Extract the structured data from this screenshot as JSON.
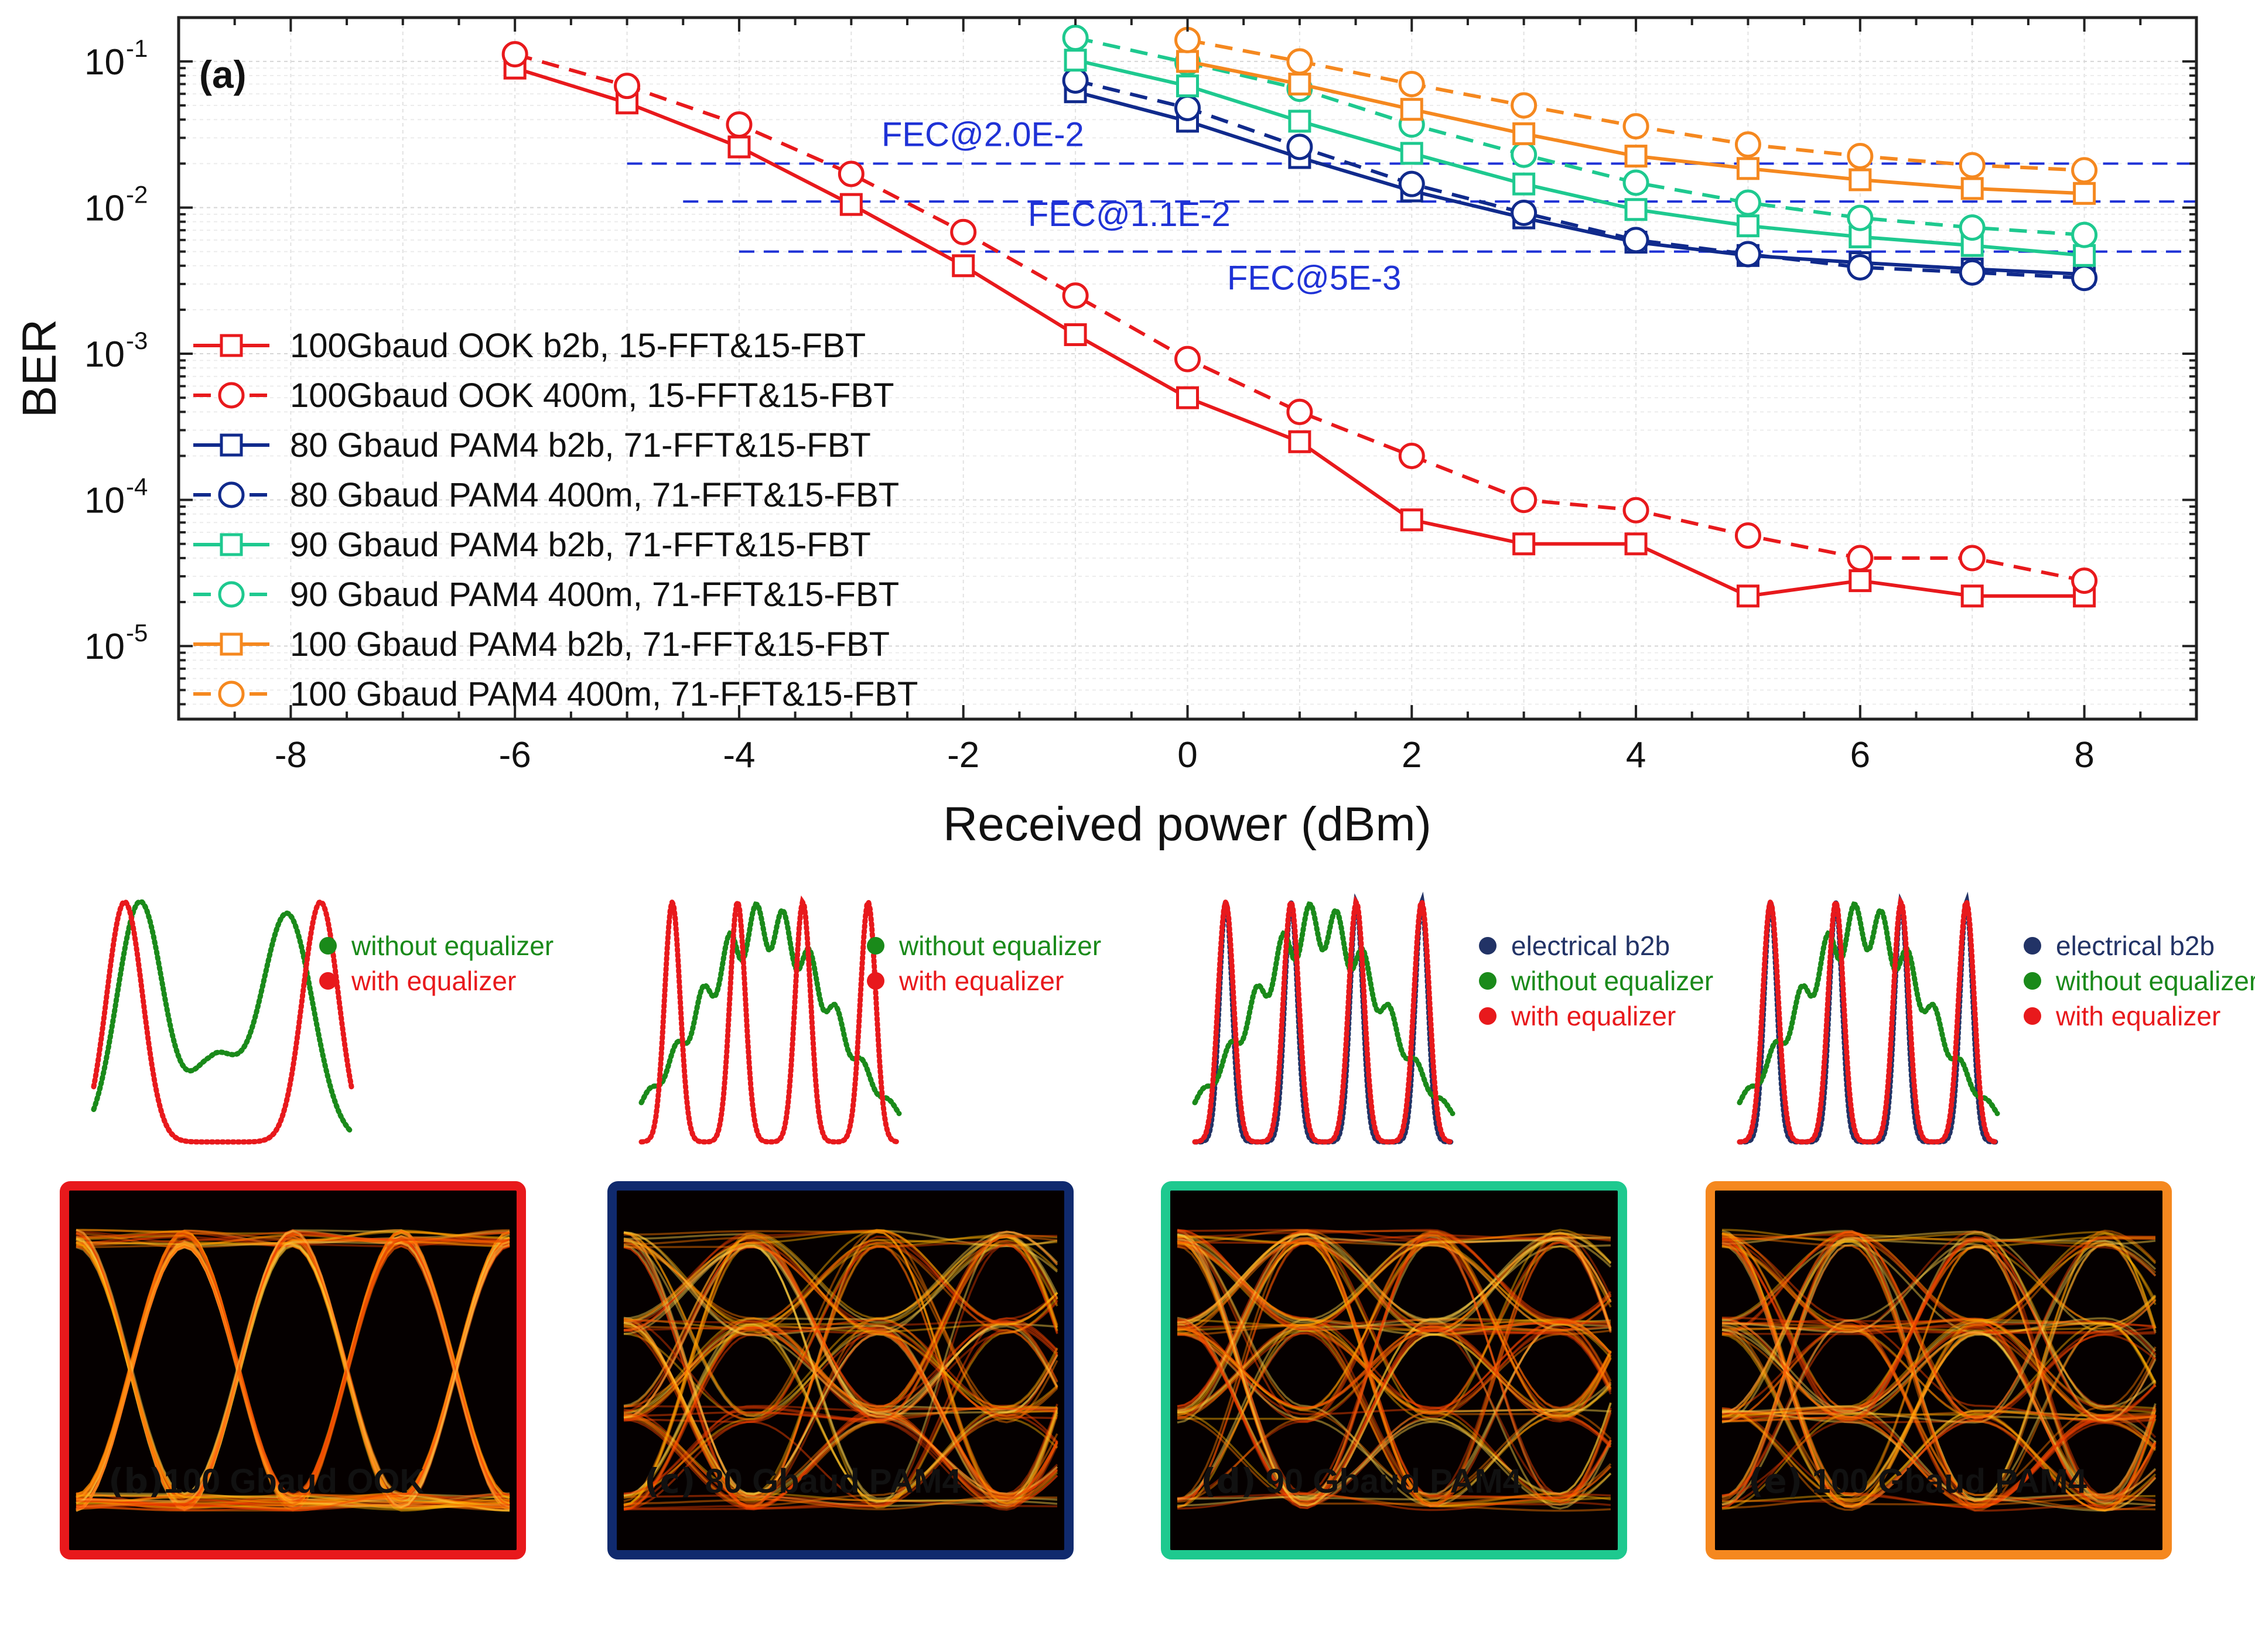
{
  "chart_data": [
    {
      "type": "line",
      "panel_label": "(a)",
      "xlabel": "Received power (dBm)",
      "ylabel": "BER",
      "xlim": [
        -9,
        9
      ],
      "ylim_log10": [
        -5.5,
        -0.7
      ],
      "x_ticks": [
        -8,
        -6,
        -4,
        -2,
        0,
        2,
        4,
        6,
        8
      ],
      "x_tick_labels": [
        "-8",
        "-6",
        "-4",
        "-2",
        "0",
        "2",
        "4",
        "6",
        "8"
      ],
      "y_ticks_log10": [
        -1,
        -2,
        -3,
        -4,
        -5
      ],
      "y_tick_labels": [
        "10",
        "10",
        "10",
        "10",
        "10"
      ],
      "y_tick_exponents": [
        "-1",
        "-2",
        "-3",
        "-4",
        "-5"
      ],
      "grid": true,
      "legend_position": "left",
      "series": [
        {
          "name": "100Gbaud OOK b2b, 15-FFT&15-FBT",
          "color": "#e8191c",
          "marker": "square",
          "dash": false,
          "x": [
            -6,
            -5,
            -4,
            -3,
            -2,
            -1,
            0,
            1,
            2,
            3,
            4,
            5,
            6,
            7,
            8
          ],
          "y": [
            0.09,
            0.052,
            0.026,
            0.0105,
            0.004,
            0.00135,
            0.0005,
            0.00025,
            7.3e-05,
            5e-05,
            5e-05,
            2.2e-05,
            2.8e-05,
            2.2e-05,
            2.2e-05
          ]
        },
        {
          "name": "100Gbaud OOK 400m, 15-FFT&15-FBT",
          "color": "#e8191c",
          "marker": "circle",
          "dash": true,
          "x": [
            -6,
            -5,
            -4,
            -3,
            -2,
            -1,
            0,
            1,
            2,
            3,
            4,
            5,
            6,
            7,
            8
          ],
          "y": [
            0.112,
            0.068,
            0.037,
            0.017,
            0.0068,
            0.0025,
            0.00092,
            0.0004,
            0.0002,
            0.0001,
            8.5e-05,
            5.7e-05,
            4e-05,
            4e-05,
            2.8e-05
          ]
        },
        {
          "name": "80 Gbaud PAM4 b2b, 71-FFT&15-FBT",
          "color": "#102a8c",
          "marker": "square",
          "dash": false,
          "x": [
            -1,
            0,
            1,
            2,
            3,
            4,
            5,
            6,
            7,
            8
          ],
          "y": [
            0.062,
            0.039,
            0.022,
            0.013,
            0.0085,
            0.0058,
            0.0047,
            0.0042,
            0.0038,
            0.0035
          ]
        },
        {
          "name": "80 Gbaud PAM4 400m, 71-FFT&15-FBT",
          "color": "#102a8c",
          "marker": "circle",
          "dash": true,
          "x": [
            -1,
            0,
            1,
            2,
            3,
            4,
            5,
            6,
            7,
            8
          ],
          "y": [
            0.074,
            0.048,
            0.026,
            0.0145,
            0.0092,
            0.006,
            0.0048,
            0.0039,
            0.0036,
            0.0033
          ]
        },
        {
          "name": "90 Gbaud PAM4 b2b, 71-FFT&15-FBT",
          "color": "#1ec98f",
          "marker": "square",
          "dash": false,
          "x": [
            -1,
            0,
            1,
            2,
            3,
            4,
            5,
            6,
            7,
            8
          ],
          "y": [
            0.102,
            0.068,
            0.039,
            0.0235,
            0.0145,
            0.0097,
            0.0075,
            0.0063,
            0.0055,
            0.0047
          ]
        },
        {
          "name": "90 Gbaud PAM4 400m, 71-FFT&15-FBT",
          "color": "#1ec98f",
          "marker": "circle",
          "dash": true,
          "x": [
            -1,
            0,
            1,
            2,
            3,
            4,
            5,
            6,
            7,
            8
          ],
          "y": [
            0.145,
            0.098,
            0.065,
            0.037,
            0.023,
            0.0148,
            0.0108,
            0.0085,
            0.0073,
            0.0065
          ]
        },
        {
          "name": "100 Gbaud PAM4 b2b, 71-FFT&15-FBT",
          "color": "#f5881f",
          "marker": "square",
          "dash": false,
          "x": [
            0,
            1,
            2,
            3,
            4,
            5,
            6,
            7,
            8
          ],
          "y": [
            0.1,
            0.07,
            0.047,
            0.032,
            0.0225,
            0.0185,
            0.0155,
            0.0135,
            0.0125
          ]
        },
        {
          "name": "100 Gbaud PAM4 400m, 71-FFT&15-FBT",
          "color": "#f5881f",
          "marker": "circle",
          "dash": true,
          "x": [
            0,
            1,
            2,
            3,
            4,
            5,
            6,
            7,
            8
          ],
          "y": [
            0.14,
            0.1,
            0.07,
            0.05,
            0.036,
            0.027,
            0.0225,
            0.0195,
            0.018
          ]
        }
      ],
      "thresholds": [
        {
          "label": "FEC@2.0E-2",
          "y": 0.02,
          "x_start": -5,
          "color": "#1f32d6"
        },
        {
          "label": "FEC@1.1E-2",
          "y": 0.011,
          "x_start": -4.5,
          "color": "#1f32d6"
        },
        {
          "label": "FEC@5E-3",
          "y": 0.005,
          "x_start": -4,
          "color": "#1f32d6"
        }
      ]
    },
    {
      "type": "eye-diagram",
      "panel": "b",
      "label_paren": "(b)",
      "label_text": "100 Gbaud OOK",
      "frame_color": "#e8191c",
      "levels": 2,
      "legend": [
        {
          "label": "without equalizer",
          "color": "#1a8a1a"
        },
        {
          "label": "with equalizer",
          "color": "#e8191c"
        }
      ]
    },
    {
      "type": "eye-diagram",
      "panel": "c",
      "label_paren": "(c)",
      "label_text": " 80 Gbaud PAM4",
      "frame_color": "#102a6e",
      "levels": 4,
      "legend": [
        {
          "label": "without equalizer",
          "color": "#1a8a1a"
        },
        {
          "label": "with equalizer",
          "color": "#e8191c"
        }
      ]
    },
    {
      "type": "eye-diagram",
      "panel": "d",
      "label_paren": "(d)",
      "label_text": " 90 Gbaud PAM4",
      "frame_color": "#1ec98f",
      "levels": 4,
      "legend": [
        {
          "label": "electrical b2b",
          "color": "#223366"
        },
        {
          "label": "without equalizer",
          "color": "#1a8a1a"
        },
        {
          "label": "with equalizer",
          "color": "#e8191c"
        }
      ]
    },
    {
      "type": "eye-diagram",
      "panel": "e",
      "label_paren": "(e)",
      "label_text": " 100 Gbaud PAM4",
      "frame_color": "#f5881f",
      "levels": 4,
      "legend": [
        {
          "label": "electrical b2b",
          "color": "#223366"
        },
        {
          "label": "without equalizer",
          "color": "#1a8a1a"
        },
        {
          "label": "with equalizer",
          "color": "#e8191c"
        }
      ]
    }
  ]
}
